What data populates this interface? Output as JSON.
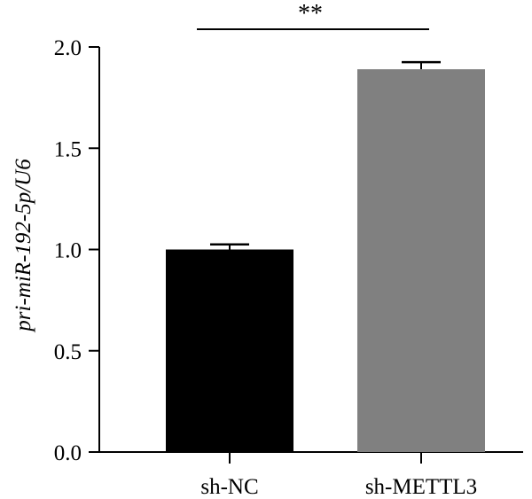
{
  "chart_data": {
    "type": "bar",
    "categories": [
      "sh-NC",
      "sh-METTL3"
    ],
    "values": [
      1.0,
      1.89
    ],
    "errors": [
      0.025,
      0.035
    ],
    "colors": [
      "#000000",
      "#808080"
    ],
    "title": "",
    "xlabel": "",
    "ylabel": "pri-miR-192-5p/U6",
    "ylim": [
      0,
      2.0
    ],
    "yticks": [
      "0.0",
      "0.5",
      "1.0",
      "1.5",
      "2.0"
    ],
    "grid": false,
    "significance": {
      "label": "**",
      "between": [
        "sh-NC",
        "sh-METTL3"
      ]
    }
  }
}
